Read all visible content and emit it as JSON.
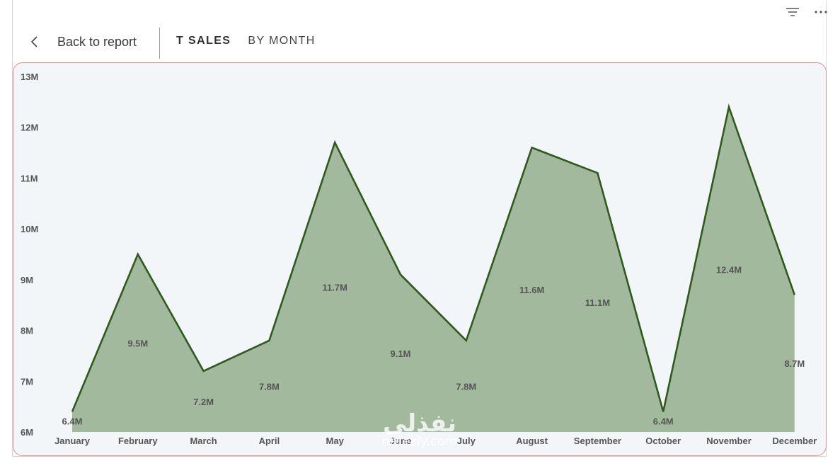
{
  "header": {
    "back_label": "Back to report",
    "title": "T SALES",
    "subtitle": "BY MONTH"
  },
  "toolbar": {
    "icons": [
      "filter-icon",
      "more-options-icon"
    ]
  },
  "watermark": {
    "text": "نفذلي",
    "url": "nafezly.com"
  },
  "chart_data": {
    "type": "area",
    "categories": [
      "January",
      "February",
      "March",
      "April",
      "May",
      "June",
      "July",
      "August",
      "September",
      "October",
      "November",
      "December"
    ],
    "series": [
      {
        "values": [
          6.4,
          9.5,
          7.2,
          7.8,
          11.7,
          9.1,
          7.8,
          11.6,
          11.1,
          6.4,
          12.4,
          8.7
        ],
        "labels": [
          "6.4M",
          "9.5M",
          "7.2M",
          "7.8M",
          "11.7M",
          "9.1M",
          "7.8M",
          "11.6M",
          "11.1M",
          "6.4M",
          "12.4M",
          "8.7M"
        ],
        "line_color": "#2e5a1c",
        "fill_color": "#a3b99e"
      }
    ],
    "y_ticks": [
      "6M",
      "7M",
      "8M",
      "9M",
      "10M",
      "11M",
      "12M",
      "13M"
    ],
    "ylim": [
      6,
      13
    ],
    "grid": false,
    "legend": "none"
  }
}
